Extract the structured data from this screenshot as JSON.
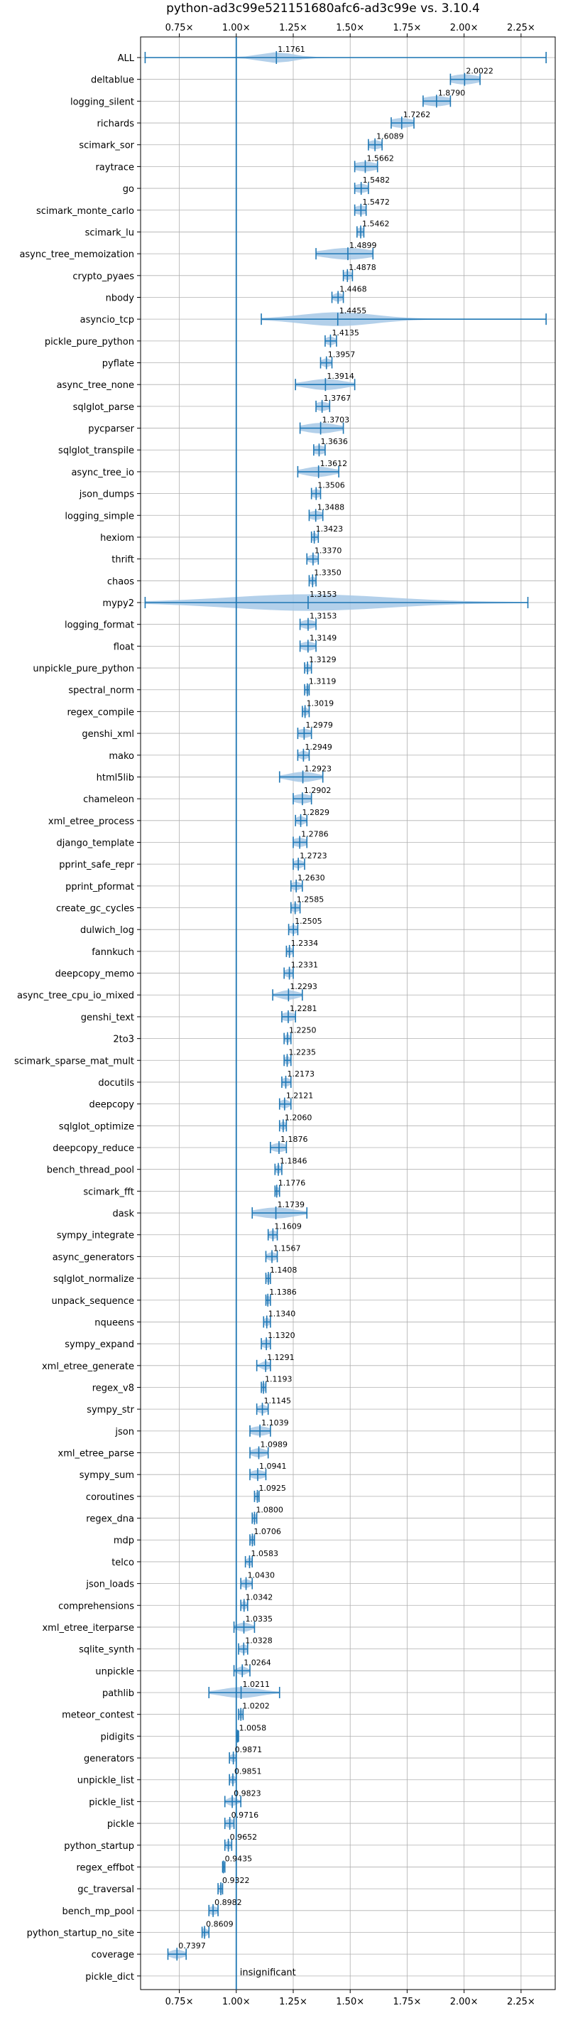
{
  "chart_data": {
    "type": "violin",
    "title": "python-ad3c99e521151680afc6-ad3c99e vs. 3.10.4",
    "xlabel": "",
    "ylabel": "",
    "x_ticks": [
      "0.75×",
      "1.00×",
      "1.25×",
      "1.50×",
      "1.75×",
      "2.00×",
      "2.25×"
    ],
    "x_tick_values": [
      0.75,
      1.0,
      1.25,
      1.5,
      1.75,
      2.0,
      2.25
    ],
    "xlim": [
      0.58,
      2.4
    ],
    "reference_line": 1.0,
    "grid": true,
    "color": "#1f77b4",
    "fill_color": "#a6c8e6",
    "insignificant_label": "insignificant",
    "rows": [
      {
        "name": "ALL",
        "value": 1.1761,
        "label": "1.1761",
        "min": 0.6,
        "max": 2.36,
        "spread": 0.07
      },
      {
        "name": "deltablue",
        "value": 2.0022,
        "label": "2.0022",
        "min": 1.94,
        "max": 2.07,
        "spread": 0.06
      },
      {
        "name": "logging_silent",
        "value": 1.879,
        "label": "1.8790",
        "min": 1.82,
        "max": 1.94,
        "spread": 0.06
      },
      {
        "name": "richards",
        "value": 1.7262,
        "label": "1.7262",
        "min": 1.68,
        "max": 1.78,
        "spread": 0.05
      },
      {
        "name": "scimark_sor",
        "value": 1.6089,
        "label": "1.6089",
        "min": 1.58,
        "max": 1.64,
        "spread": 0.03
      },
      {
        "name": "raytrace",
        "value": 1.5662,
        "label": "1.5662",
        "min": 1.52,
        "max": 1.62,
        "spread": 0.05
      },
      {
        "name": "go",
        "value": 1.5482,
        "label": "1.5482",
        "min": 1.52,
        "max": 1.58,
        "spread": 0.03
      },
      {
        "name": "scimark_monte_carlo",
        "value": 1.5472,
        "label": "1.5472",
        "min": 1.52,
        "max": 1.57,
        "spread": 0.03
      },
      {
        "name": "scimark_lu",
        "value": 1.5462,
        "label": "1.5462",
        "min": 1.53,
        "max": 1.56,
        "spread": 0.02
      },
      {
        "name": "async_tree_memoization",
        "value": 1.4899,
        "label": "1.4899",
        "min": 1.35,
        "max": 1.6,
        "spread": 0.1
      },
      {
        "name": "crypto_pyaes",
        "value": 1.4878,
        "label": "1.4878",
        "min": 1.47,
        "max": 1.51,
        "spread": 0.02
      },
      {
        "name": "nbody",
        "value": 1.4468,
        "label": "1.4468",
        "min": 1.42,
        "max": 1.47,
        "spread": 0.02
      },
      {
        "name": "asyncio_tcp",
        "value": 1.4455,
        "label": "1.4455",
        "min": 1.11,
        "max": 2.36,
        "spread": 0.16
      },
      {
        "name": "pickle_pure_python",
        "value": 1.4135,
        "label": "1.4135",
        "min": 1.39,
        "max": 1.44,
        "spread": 0.02
      },
      {
        "name": "pyflate",
        "value": 1.3957,
        "label": "1.3957",
        "min": 1.37,
        "max": 1.42,
        "spread": 0.02
      },
      {
        "name": "async_tree_none",
        "value": 1.3914,
        "label": "1.3914",
        "min": 1.26,
        "max": 1.52,
        "spread": 0.08
      },
      {
        "name": "sqlglot_parse",
        "value": 1.3767,
        "label": "1.3767",
        "min": 1.35,
        "max": 1.41,
        "spread": 0.03
      },
      {
        "name": "pycparser",
        "value": 1.3703,
        "label": "1.3703",
        "min": 1.28,
        "max": 1.47,
        "spread": 0.07
      },
      {
        "name": "sqlglot_transpile",
        "value": 1.3636,
        "label": "1.3636",
        "min": 1.34,
        "max": 1.39,
        "spread": 0.03
      },
      {
        "name": "async_tree_io",
        "value": 1.3612,
        "label": "1.3612",
        "min": 1.27,
        "max": 1.45,
        "spread": 0.06
      },
      {
        "name": "json_dumps",
        "value": 1.3506,
        "label": "1.3506",
        "min": 1.33,
        "max": 1.37,
        "spread": 0.02
      },
      {
        "name": "logging_simple",
        "value": 1.3488,
        "label": "1.3488",
        "min": 1.32,
        "max": 1.38,
        "spread": 0.03
      },
      {
        "name": "hexiom",
        "value": 1.3423,
        "label": "1.3423",
        "min": 1.33,
        "max": 1.36,
        "spread": 0.01
      },
      {
        "name": "thrift",
        "value": 1.337,
        "label": "1.3370",
        "min": 1.31,
        "max": 1.36,
        "spread": 0.02
      },
      {
        "name": "chaos",
        "value": 1.335,
        "label": "1.3350",
        "min": 1.32,
        "max": 1.35,
        "spread": 0.01
      },
      {
        "name": "mypy2",
        "value": 1.3153,
        "label": "1.3153",
        "min": 0.6,
        "max": 2.28,
        "spread": 0.35
      },
      {
        "name": "logging_format",
        "value": 1.3153,
        "label": "1.3153",
        "min": 1.28,
        "max": 1.35,
        "spread": 0.03
      },
      {
        "name": "float",
        "value": 1.3149,
        "label": "1.3149",
        "min": 1.28,
        "max": 1.35,
        "spread": 0.03
      },
      {
        "name": "unpickle_pure_python",
        "value": 1.3129,
        "label": "1.3129",
        "min": 1.3,
        "max": 1.33,
        "spread": 0.01
      },
      {
        "name": "spectral_norm",
        "value": 1.3119,
        "label": "1.3119",
        "min": 1.3,
        "max": 1.32,
        "spread": 0.01
      },
      {
        "name": "regex_compile",
        "value": 1.3019,
        "label": "1.3019",
        "min": 1.29,
        "max": 1.32,
        "spread": 0.01
      },
      {
        "name": "genshi_xml",
        "value": 1.2979,
        "label": "1.2979",
        "min": 1.27,
        "max": 1.33,
        "spread": 0.03
      },
      {
        "name": "mako",
        "value": 1.2949,
        "label": "1.2949",
        "min": 1.27,
        "max": 1.32,
        "spread": 0.02
      },
      {
        "name": "html5lib",
        "value": 1.2923,
        "label": "1.2923",
        "min": 1.19,
        "max": 1.38,
        "spread": 0.06
      },
      {
        "name": "chameleon",
        "value": 1.2902,
        "label": "1.2902",
        "min": 1.25,
        "max": 1.33,
        "spread": 0.04
      },
      {
        "name": "xml_etree_process",
        "value": 1.2829,
        "label": "1.2829",
        "min": 1.26,
        "max": 1.31,
        "spread": 0.02
      },
      {
        "name": "django_template",
        "value": 1.2786,
        "label": "1.2786",
        "min": 1.25,
        "max": 1.31,
        "spread": 0.03
      },
      {
        "name": "pprint_safe_repr",
        "value": 1.2723,
        "label": "1.2723",
        "min": 1.25,
        "max": 1.3,
        "spread": 0.02
      },
      {
        "name": "pprint_pformat",
        "value": 1.263,
        "label": "1.2630",
        "min": 1.24,
        "max": 1.29,
        "spread": 0.02
      },
      {
        "name": "create_gc_cycles",
        "value": 1.2585,
        "label": "1.2585",
        "min": 1.24,
        "max": 1.28,
        "spread": 0.02
      },
      {
        "name": "dulwich_log",
        "value": 1.2505,
        "label": "1.2505",
        "min": 1.23,
        "max": 1.27,
        "spread": 0.02
      },
      {
        "name": "fannkuch",
        "value": 1.2334,
        "label": "1.2334",
        "min": 1.22,
        "max": 1.25,
        "spread": 0.01
      },
      {
        "name": "deepcopy_memo",
        "value": 1.2331,
        "label": "1.2331",
        "min": 1.21,
        "max": 1.25,
        "spread": 0.02
      },
      {
        "name": "async_tree_cpu_io_mixed",
        "value": 1.2293,
        "label": "1.2293",
        "min": 1.16,
        "max": 1.29,
        "spread": 0.04
      },
      {
        "name": "genshi_text",
        "value": 1.2281,
        "label": "1.2281",
        "min": 1.2,
        "max": 1.26,
        "spread": 0.03
      },
      {
        "name": "2to3",
        "value": 1.225,
        "label": "1.2250",
        "min": 1.21,
        "max": 1.24,
        "spread": 0.01
      },
      {
        "name": "scimark_sparse_mat_mult",
        "value": 1.2235,
        "label": "1.2235",
        "min": 1.21,
        "max": 1.24,
        "spread": 0.01
      },
      {
        "name": "docutils",
        "value": 1.2173,
        "label": "1.2173",
        "min": 1.2,
        "max": 1.24,
        "spread": 0.02
      },
      {
        "name": "deepcopy",
        "value": 1.2121,
        "label": "1.2121",
        "min": 1.19,
        "max": 1.24,
        "spread": 0.02
      },
      {
        "name": "sqlglot_optimize",
        "value": 1.206,
        "label": "1.2060",
        "min": 1.19,
        "max": 1.22,
        "spread": 0.01
      },
      {
        "name": "deepcopy_reduce",
        "value": 1.1876,
        "label": "1.1876",
        "min": 1.15,
        "max": 1.22,
        "spread": 0.03
      },
      {
        "name": "bench_thread_pool",
        "value": 1.1846,
        "label": "1.1846",
        "min": 1.17,
        "max": 1.2,
        "spread": 0.01
      },
      {
        "name": "scimark_fft",
        "value": 1.1776,
        "label": "1.1776",
        "min": 1.17,
        "max": 1.19,
        "spread": 0.01
      },
      {
        "name": "dask",
        "value": 1.1739,
        "label": "1.1739",
        "min": 1.07,
        "max": 1.31,
        "spread": 0.08
      },
      {
        "name": "sympy_integrate",
        "value": 1.1609,
        "label": "1.1609",
        "min": 1.14,
        "max": 1.18,
        "spread": 0.02
      },
      {
        "name": "async_generators",
        "value": 1.1567,
        "label": "1.1567",
        "min": 1.13,
        "max": 1.18,
        "spread": 0.02
      },
      {
        "name": "sqlglot_normalize",
        "value": 1.1408,
        "label": "1.1408",
        "min": 1.13,
        "max": 1.15,
        "spread": 0.01
      },
      {
        "name": "unpack_sequence",
        "value": 1.1386,
        "label": "1.1386",
        "min": 1.13,
        "max": 1.15,
        "spread": 0.01
      },
      {
        "name": "nqueens",
        "value": 1.134,
        "label": "1.1340",
        "min": 1.12,
        "max": 1.15,
        "spread": 0.01
      },
      {
        "name": "sympy_expand",
        "value": 1.132,
        "label": "1.1320",
        "min": 1.11,
        "max": 1.15,
        "spread": 0.02
      },
      {
        "name": "xml_etree_generate",
        "value": 1.1291,
        "label": "1.1291",
        "min": 1.09,
        "max": 1.15,
        "spread": 0.02
      },
      {
        "name": "regex_v8",
        "value": 1.1193,
        "label": "1.1193",
        "min": 1.11,
        "max": 1.13,
        "spread": 0.01
      },
      {
        "name": "sympy_str",
        "value": 1.1145,
        "label": "1.1145",
        "min": 1.09,
        "max": 1.14,
        "spread": 0.02
      },
      {
        "name": "json",
        "value": 1.1039,
        "label": "1.1039",
        "min": 1.06,
        "max": 1.15,
        "spread": 0.04
      },
      {
        "name": "xml_etree_parse",
        "value": 1.0989,
        "label": "1.0989",
        "min": 1.06,
        "max": 1.14,
        "spread": 0.03
      },
      {
        "name": "sympy_sum",
        "value": 1.0941,
        "label": "1.0941",
        "min": 1.06,
        "max": 1.13,
        "spread": 0.03
      },
      {
        "name": "coroutines",
        "value": 1.0925,
        "label": "1.0925",
        "min": 1.08,
        "max": 1.1,
        "spread": 0.01
      },
      {
        "name": "regex_dna",
        "value": 1.08,
        "label": "1.0800",
        "min": 1.07,
        "max": 1.09,
        "spread": 0.01
      },
      {
        "name": "mdp",
        "value": 1.0706,
        "label": "1.0706",
        "min": 1.06,
        "max": 1.08,
        "spread": 0.01
      },
      {
        "name": "telco",
        "value": 1.0583,
        "label": "1.0583",
        "min": 1.04,
        "max": 1.07,
        "spread": 0.01
      },
      {
        "name": "json_loads",
        "value": 1.043,
        "label": "1.0430",
        "min": 1.02,
        "max": 1.07,
        "spread": 0.02
      },
      {
        "name": "comprehensions",
        "value": 1.0342,
        "label": "1.0342",
        "min": 1.02,
        "max": 1.05,
        "spread": 0.01
      },
      {
        "name": "xml_etree_iterparse",
        "value": 1.0335,
        "label": "1.0335",
        "min": 0.99,
        "max": 1.08,
        "spread": 0.03
      },
      {
        "name": "sqlite_synth",
        "value": 1.0328,
        "label": "1.0328",
        "min": 1.01,
        "max": 1.05,
        "spread": 0.02
      },
      {
        "name": "unpickle",
        "value": 1.0264,
        "label": "1.0264",
        "min": 0.99,
        "max": 1.06,
        "spread": 0.02
      },
      {
        "name": "pathlib",
        "value": 1.0211,
        "label": "1.0211",
        "min": 0.88,
        "max": 1.19,
        "spread": 0.08
      },
      {
        "name": "meteor_contest",
        "value": 1.0202,
        "label": "1.0202",
        "min": 1.01,
        "max": 1.03,
        "spread": 0.01
      },
      {
        "name": "pidigits",
        "value": 1.0058,
        "label": "1.0058",
        "min": 1.0,
        "max": 1.01,
        "spread": 0.005
      },
      {
        "name": "generators",
        "value": 0.9871,
        "label": "0.9871",
        "min": 0.97,
        "max": 1.0,
        "spread": 0.01
      },
      {
        "name": "unpickle_list",
        "value": 0.9851,
        "label": "0.9851",
        "min": 0.97,
        "max": 1.0,
        "spread": 0.01
      },
      {
        "name": "pickle_list",
        "value": 0.9823,
        "label": "0.9823",
        "min": 0.95,
        "max": 1.02,
        "spread": 0.02
      },
      {
        "name": "pickle",
        "value": 0.9716,
        "label": "0.9716",
        "min": 0.95,
        "max": 0.99,
        "spread": 0.02
      },
      {
        "name": "python_startup",
        "value": 0.9652,
        "label": "0.9652",
        "min": 0.95,
        "max": 0.98,
        "spread": 0.01
      },
      {
        "name": "regex_effbot",
        "value": 0.9435,
        "label": "0.9435",
        "min": 0.94,
        "max": 0.95,
        "spread": 0.005
      },
      {
        "name": "gc_traversal",
        "value": 0.9322,
        "label": "0.9322",
        "min": 0.92,
        "max": 0.94,
        "spread": 0.005
      },
      {
        "name": "bench_mp_pool",
        "value": 0.8982,
        "label": "0.8982",
        "min": 0.88,
        "max": 0.92,
        "spread": 0.02
      },
      {
        "name": "python_startup_no_site",
        "value": 0.8609,
        "label": "0.8609",
        "min": 0.85,
        "max": 0.88,
        "spread": 0.01
      },
      {
        "name": "coverage",
        "value": 0.7397,
        "label": "0.7397",
        "min": 0.7,
        "max": 0.78,
        "spread": 0.03
      },
      {
        "name": "pickle_dict",
        "value": null,
        "label": "insignificant",
        "min": null,
        "max": null,
        "spread": 0
      }
    ]
  }
}
